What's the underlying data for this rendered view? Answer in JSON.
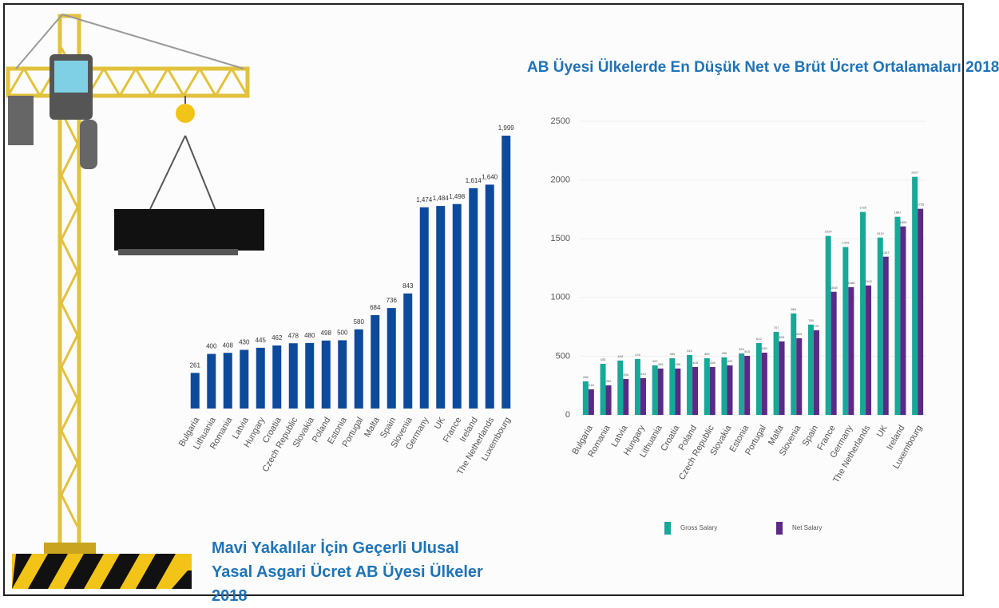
{
  "chart_data": [
    {
      "type": "bar",
      "title": "Mavi Yakalılar İçin Geçerli Ulusal Yasal Asgari Ücret AB Üyesi Ülkeler 2018",
      "categories": [
        "Bulgaria",
        "Lithuania",
        "Romania",
        "Latvia",
        "Hungary",
        "Croatia",
        "Czech Republic",
        "Slovakia",
        "Poland",
        "Estonia",
        "Portugal",
        "Malta",
        "Spain",
        "Slovenia",
        "Germany",
        "UK",
        "France",
        "Ireland",
        "The Netherlands",
        "Luxembourg"
      ],
      "values": [
        261,
        400,
        408,
        430,
        445,
        462,
        478,
        480,
        498,
        500,
        580,
        684,
        736,
        843,
        1474,
        1484,
        1498,
        1614,
        1640,
        1999
      ],
      "value_labels": [
        "261",
        "400",
        "408",
        "430",
        "445",
        "462",
        "478",
        "480",
        "498",
        "500",
        "580",
        "684",
        "736",
        "843",
        "1,474",
        "1,484",
        "1,498",
        "1,614",
        "1,640",
        "1,999"
      ],
      "color": "#0d4a9b"
    },
    {
      "type": "grouped-bar",
      "title": "AB Üyesi Ülkelerde En Düşük Net ve Brüt Ücret Ortalamaları 2018",
      "categories": [
        "Bulgaria",
        "Romania",
        "Latvia",
        "Hungary",
        "Lithuania",
        "Croatia",
        "Poland",
        "Czech Republic",
        "Slovakia",
        "Estonia",
        "Portugal",
        "Malta",
        "Slovenia",
        "Spain",
        "France",
        "Germany",
        "The Netherlands",
        "UK",
        "Ireland",
        "Luxembourg"
      ],
      "series": [
        {
          "name": "Gross Salary",
          "color": "#18a898",
          "values": [
            286,
            435,
            463,
            476,
            422,
            483,
            510,
            483,
            490,
            524,
            612,
            707,
            864,
            769,
            1524,
            1429,
            1728,
            1510,
            1687,
            2027
          ]
        },
        {
          "name": "Net Salary",
          "color": "#5a2a86",
          "values": [
            218,
            252,
            306,
            313,
            395,
            395,
            408,
            408,
            422,
            503,
            530,
            626,
            653,
            721,
            1048,
            1088,
            1102,
            1347,
            1605,
            1755
          ]
        }
      ],
      "ylim": [
        0,
        2500
      ],
      "yticks": [
        0,
        500,
        1000,
        1500,
        2000,
        2500
      ],
      "grid": true,
      "legend": "bottom"
    }
  ]
}
